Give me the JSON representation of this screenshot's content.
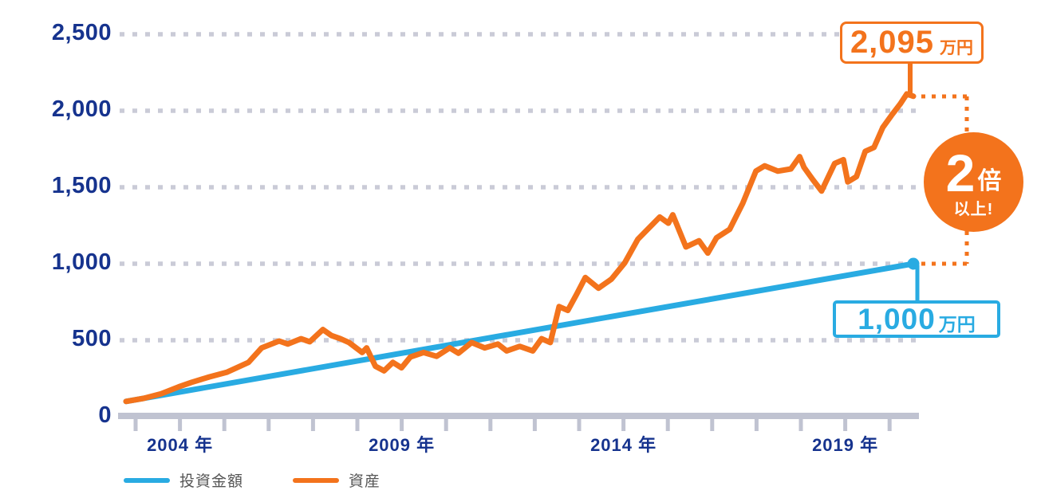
{
  "chart_data": {
    "type": "line",
    "title": "",
    "xlabel": "",
    "ylabel": "",
    "unit": "万円",
    "x_range": [
      2003,
      2021
    ],
    "ylim": [
      0,
      2500
    ],
    "grid": "horizontal-dashed",
    "legend_position": "bottom-left",
    "y_ticks": [
      2500,
      2000,
      1500,
      1000,
      500,
      0
    ],
    "x_label_years": [
      2004,
      2009,
      2014,
      2019
    ],
    "series": [
      {
        "name": "投資金額",
        "color": "#29abe2",
        "end_marker": true,
        "points": [
          [
            2003.0,
            100
          ],
          [
            2021.0,
            1000
          ]
        ]
      },
      {
        "name": "資産",
        "color": "#f3731c",
        "end_marker": false,
        "points": [
          [
            2003.0,
            100
          ],
          [
            2003.4,
            120
          ],
          [
            2003.8,
            150
          ],
          [
            2004.2,
            195
          ],
          [
            2004.5,
            225
          ],
          [
            2004.9,
            260
          ],
          [
            2005.3,
            290
          ],
          [
            2005.8,
            355
          ],
          [
            2006.1,
            450
          ],
          [
            2006.5,
            495
          ],
          [
            2006.7,
            475
          ],
          [
            2007.0,
            510
          ],
          [
            2007.2,
            490
          ],
          [
            2007.5,
            570
          ],
          [
            2007.7,
            530
          ],
          [
            2007.9,
            510
          ],
          [
            2008.1,
            485
          ],
          [
            2008.4,
            420
          ],
          [
            2008.5,
            450
          ],
          [
            2008.7,
            330
          ],
          [
            2008.9,
            300
          ],
          [
            2009.1,
            355
          ],
          [
            2009.3,
            320
          ],
          [
            2009.5,
            390
          ],
          [
            2009.8,
            420
          ],
          [
            2010.1,
            395
          ],
          [
            2010.4,
            450
          ],
          [
            2010.6,
            415
          ],
          [
            2010.9,
            485
          ],
          [
            2011.2,
            450
          ],
          [
            2011.5,
            475
          ],
          [
            2011.7,
            430
          ],
          [
            2012.0,
            460
          ],
          [
            2012.3,
            430
          ],
          [
            2012.5,
            510
          ],
          [
            2012.7,
            485
          ],
          [
            2012.9,
            720
          ],
          [
            2013.1,
            695
          ],
          [
            2013.3,
            800
          ],
          [
            2013.5,
            910
          ],
          [
            2013.8,
            840
          ],
          [
            2014.1,
            900
          ],
          [
            2014.4,
            1005
          ],
          [
            2014.7,
            1160
          ],
          [
            2015.2,
            1305
          ],
          [
            2015.4,
            1265
          ],
          [
            2015.5,
            1320
          ],
          [
            2015.8,
            1110
          ],
          [
            2016.1,
            1150
          ],
          [
            2016.3,
            1070
          ],
          [
            2016.5,
            1170
          ],
          [
            2016.8,
            1225
          ],
          [
            2017.1,
            1395
          ],
          [
            2017.4,
            1605
          ],
          [
            2017.6,
            1640
          ],
          [
            2017.9,
            1605
          ],
          [
            2018.2,
            1620
          ],
          [
            2018.4,
            1700
          ],
          [
            2018.5,
            1630
          ],
          [
            2018.7,
            1550
          ],
          [
            2018.9,
            1475
          ],
          [
            2019.2,
            1655
          ],
          [
            2019.4,
            1680
          ],
          [
            2019.5,
            1535
          ],
          [
            2019.7,
            1570
          ],
          [
            2019.9,
            1735
          ],
          [
            2020.1,
            1760
          ],
          [
            2020.3,
            1890
          ],
          [
            2020.5,
            1970
          ],
          [
            2020.7,
            2045
          ],
          [
            2020.85,
            2110
          ],
          [
            2021.0,
            2095
          ]
        ]
      }
    ],
    "annotation_values": {
      "asset_final": 2095,
      "investment_final": 1000,
      "multiple": "2倍以上"
    }
  },
  "axis": {
    "y_labels": [
      "2,500",
      "2,000",
      "1,500",
      "1,000",
      "500",
      "0"
    ],
    "x_labels": [
      "2004 年",
      "2009 年",
      "2014 年",
      "2019 年"
    ]
  },
  "annotations": {
    "asset_callout": {
      "value": "2,095",
      "unit": "万円"
    },
    "invest_callout": {
      "value": "1,000",
      "unit": "万円"
    },
    "badge": {
      "number": "2",
      "word": "倍",
      "sub": "以上!"
    }
  },
  "legend": {
    "items": [
      {
        "label": "投資金額",
        "color": "#29abe2"
      },
      {
        "label": "資産",
        "color": "#f3731c"
      }
    ]
  },
  "colors": {
    "axis_text": "#16338e",
    "grid": "#cacbd7",
    "axis_line": "#c0c3d1",
    "investment_line": "#29abe2",
    "asset_line": "#f3731c",
    "badge_bg": "#f3731c",
    "legend_text": "#555555"
  }
}
